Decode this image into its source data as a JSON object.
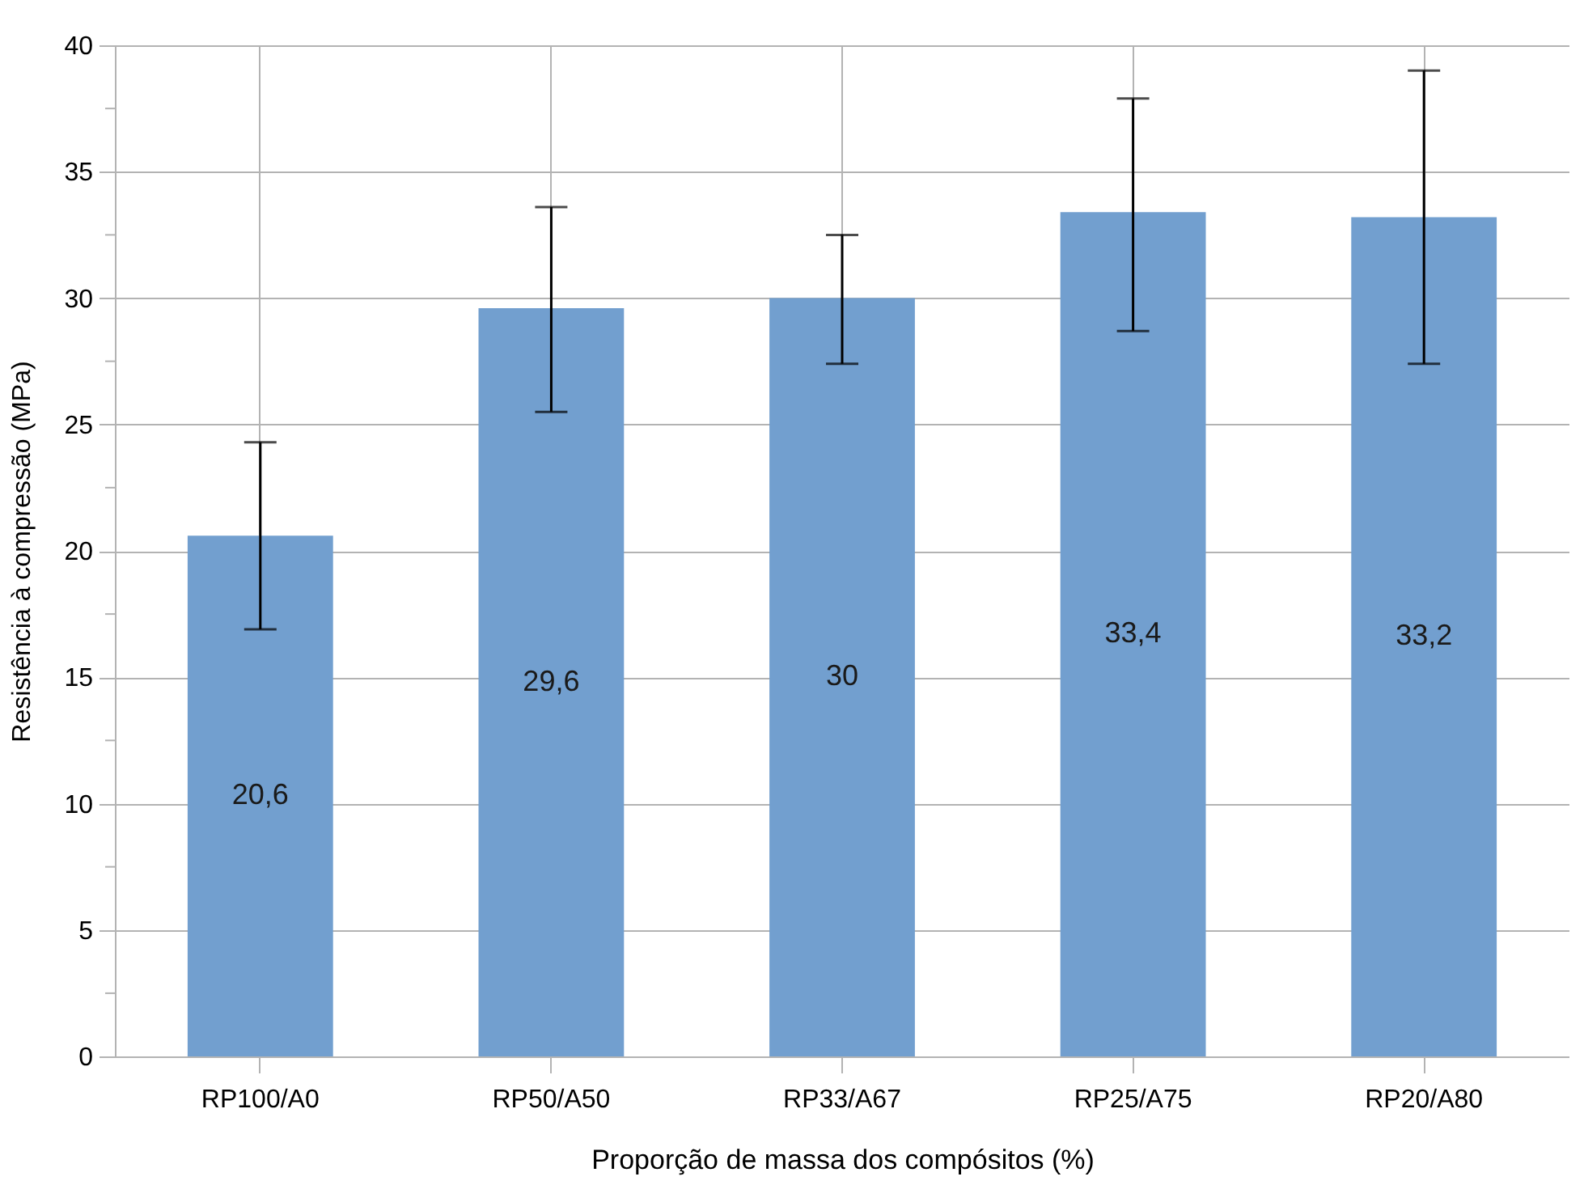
{
  "chart_data": {
    "type": "bar",
    "xlabel": "Proporção de massa dos compósitos (%)",
    "ylabel": "Resistência à compressão (MPa)",
    "categories": [
      "RP100/A0",
      "RP50/A50",
      "RP33/A67",
      "RP25/A75",
      "RP20/A80"
    ],
    "values": [
      20.6,
      29.6,
      30,
      33.4,
      33.2
    ],
    "color": "#729fcf",
    "errors": [
      [
        16.9,
        24.3
      ],
      [
        25.5,
        33.6
      ],
      [
        27.4,
        32.5
      ],
      [
        28.7,
        37.9
      ],
      [
        27.4,
        39.0
      ]
    ],
    "value_labels": [
      "20,6",
      "29,6",
      "30",
      "33,4",
      "33,2"
    ],
    "ylim": [
      0,
      40
    ],
    "yticks": [
      0,
      {
        "value": 2.5,
        "label": null
      },
      5,
      {
        "value": 7.5,
        "label": null
      },
      10,
      {
        "value": 12.5,
        "label": null
      },
      15,
      {
        "value": 17.5,
        "label": null
      },
      20,
      {
        "value": 22.5,
        "label": null
      },
      25,
      {
        "value": 27.5,
        "label": null
      },
      30,
      {
        "value": 32.5,
        "label": null
      },
      35,
      {
        "value": 37.5,
        "label": null
      },
      40
    ],
    "grid": true
  }
}
